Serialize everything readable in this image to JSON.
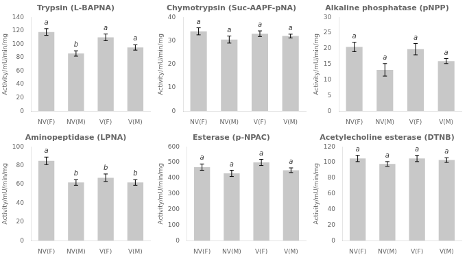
{
  "chart_data": [
    {
      "type": "bar",
      "title": "Trypsin (L-BAPNA)",
      "ylabel": "Activity/mU/min/mg",
      "categories": [
        "NV(F)",
        "NV(M)",
        "V(F)",
        "V(M)"
      ],
      "values": [
        118,
        86,
        110,
        95
      ],
      "errors": [
        5,
        4,
        5,
        4
      ],
      "annotations": [
        "a",
        "b",
        "a",
        "a"
      ],
      "color": "#c8c8c8",
      "ylim": [
        0,
        140
      ],
      "yticks": [
        0,
        20,
        40,
        60,
        80,
        100,
        120,
        140
      ],
      "grid": false
    },
    {
      "type": "bar",
      "title": "Chymotrypsin (Suc-AAPF-pNA)",
      "ylabel": "Activity/mU/min/mg",
      "categories": [
        "NV(F)",
        "NV(M)",
        "V(F)",
        "V(M)"
      ],
      "values": [
        34,
        30.5,
        33,
        32
      ],
      "errors": [
        1.5,
        1.5,
        1.2,
        0.8
      ],
      "annotations": [
        "a",
        "a",
        "a",
        "a"
      ],
      "color": "#c8c8c8",
      "ylim": [
        0,
        40
      ],
      "yticks": [
        0,
        10,
        20,
        30,
        40
      ],
      "grid": false
    },
    {
      "type": "bar",
      "title": "Alkaline phosphatase (pNPP)",
      "ylabel": "Activity/mU/min/mg",
      "categories": [
        "NV(F)",
        "NV(M)",
        "V(F)",
        "V(M)"
      ],
      "values": [
        20.5,
        13.2,
        19.8,
        16
      ],
      "errors": [
        1.5,
        2.0,
        1.8,
        0.8
      ],
      "annotations": [
        "a",
        "a",
        "a",
        "a"
      ],
      "color": "#c8c8c8",
      "ylim": [
        0,
        30
      ],
      "yticks": [
        0,
        5,
        10,
        15,
        20,
        25,
        30
      ],
      "grid": false
    },
    {
      "type": "bar",
      "title": "Aminopeptidase (LPNA)",
      "ylabel": "Activity/mU/min/mg",
      "categories": [
        "NV(F)",
        "NV(M)",
        "V(F)",
        "V(M)"
      ],
      "values": [
        85,
        62,
        67,
        62
      ],
      "errors": [
        4,
        3,
        4,
        3
      ],
      "annotations": [
        "a",
        "b",
        "b",
        "b"
      ],
      "color": "#c8c8c8",
      "ylim": [
        0,
        100
      ],
      "yticks": [
        0,
        20,
        40,
        60,
        80,
        100
      ],
      "grid": false
    },
    {
      "type": "bar",
      "title": "Esterase (p-NPAC)",
      "ylabel": "Activity/mU/min/mg",
      "categories": [
        "NV(F)",
        "NV(M)",
        "V(F)",
        "V(M)"
      ],
      "values": [
        470,
        430,
        500,
        450
      ],
      "errors": [
        20,
        20,
        20,
        15
      ],
      "annotations": [
        "a",
        "a",
        "a",
        "a"
      ],
      "color": "#c8c8c8",
      "ylim": [
        0,
        600
      ],
      "yticks": [
        0,
        100,
        200,
        300,
        400,
        500,
        600
      ],
      "grid": false
    },
    {
      "type": "bar",
      "title": "Acetylecholine esterase (DTNB)",
      "ylabel": "Activity/mU/min/mg",
      "categories": [
        "NV(F)",
        "NV(M)",
        "V(F)",
        "V(M)"
      ],
      "values": [
        105,
        98,
        105,
        103
      ],
      "errors": [
        4,
        3,
        4,
        3
      ],
      "annotations": [
        "a",
        "a",
        "a",
        "a"
      ],
      "color": "#c8c8c8",
      "ylim": [
        0,
        120
      ],
      "yticks": [
        0,
        20,
        40,
        60,
        80,
        100,
        120
      ],
      "grid": false
    }
  ]
}
